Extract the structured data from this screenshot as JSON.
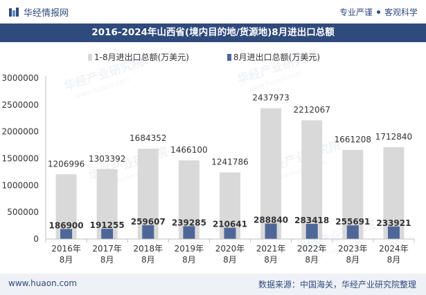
{
  "header": {
    "brand": "华经情报网",
    "slogan_left": "专业严谨",
    "slogan_right": "客观科学"
  },
  "watermark": "华经产业研究院",
  "watermark_url": "www.huaon.com",
  "footer": {
    "url": "www.huaon.com",
    "source": "数据来源：中国海关，华经产业研究院整理"
  },
  "colors": {
    "navy": "#2f4a7c",
    "bar_cumulative": "#d9d9d9",
    "bar_month": "#4f6798"
  },
  "chart_data": {
    "type": "bar",
    "title": "2016-2024年山西省(境内目的地/货源地)8月进出口总额",
    "categories": [
      "2016年\n8月",
      "2017年\n8月",
      "2018年\n8月",
      "2019年\n8月",
      "2020年\n8月",
      "2021年\n8月",
      "2022年\n8月",
      "2023年\n8月",
      "2024年\n8月"
    ],
    "series": [
      {
        "name": "1-8月进出口总额(万美元)",
        "values": [
          1206996,
          1303392,
          1684352,
          1466100,
          1241786,
          2437973,
          2212067,
          1661208,
          1712840
        ]
      },
      {
        "name": "8月进出口总额(万美元)",
        "values": [
          186900,
          191255,
          259607,
          239285,
          210641,
          288840,
          283418,
          255691,
          233921
        ]
      }
    ],
    "yticks": [
      "0",
      "500000",
      "1000000",
      "1500000",
      "2000000",
      "2500000",
      "3000000"
    ],
    "ylim": [
      0,
      3000000
    ],
    "xlabel": "",
    "ylabel": "",
    "legend": "top-center"
  }
}
